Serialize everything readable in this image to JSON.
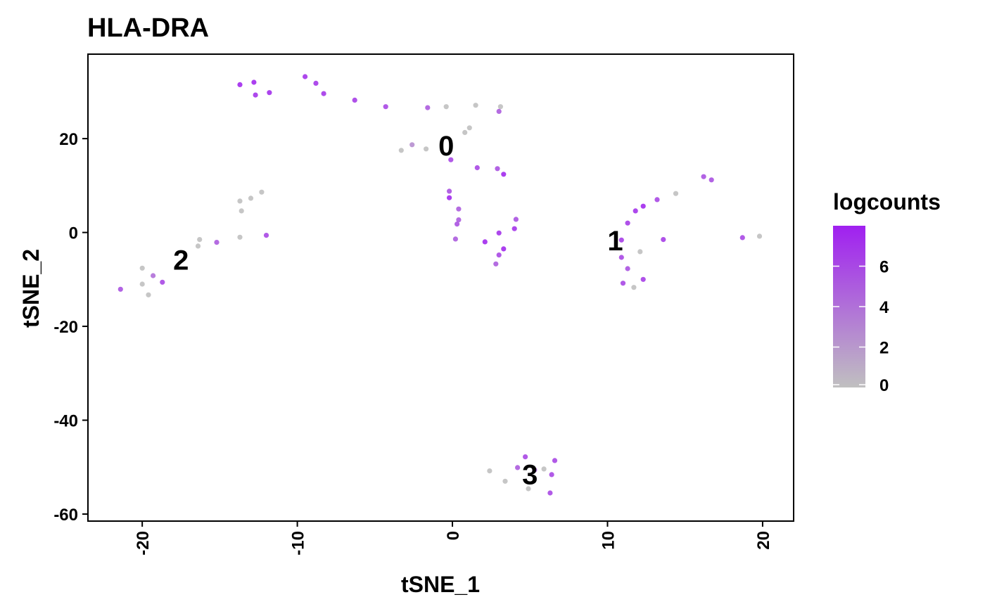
{
  "chart_data": {
    "type": "scatter",
    "title": "HLA-DRA",
    "xlabel": "tSNE_1",
    "ylabel": "tSNE_2",
    "xlim": [
      -23.5,
      22
    ],
    "ylim": [
      -61.5,
      38
    ],
    "x_ticks": [
      -20,
      -10,
      0,
      10,
      20
    ],
    "x_tick_labels": [
      "-20",
      "-10",
      "0",
      "10",
      "20"
    ],
    "y_ticks": [
      -60,
      -40,
      -20,
      0,
      20
    ],
    "y_tick_labels": [
      "-60",
      "-40",
      "-20",
      "0",
      "20"
    ],
    "grid": false,
    "color_scale": {
      "name": "logcounts",
      "low_color": "#c0c0c0",
      "high_color": "#a020f0",
      "min": 0,
      "max": 8,
      "ticks": [
        0,
        2,
        4,
        6
      ],
      "tick_labels": [
        "0",
        "2",
        "4",
        "6"
      ],
      "legend_position": "right"
    },
    "points": [
      {
        "x": -13.7,
        "y": 31.5,
        "v": 7.5
      },
      {
        "x": -12.8,
        "y": 32.0,
        "v": 7.5
      },
      {
        "x": -12.7,
        "y": 29.3,
        "v": 7.0
      },
      {
        "x": -11.8,
        "y": 29.8,
        "v": 7.2
      },
      {
        "x": -9.5,
        "y": 33.2,
        "v": 7.0
      },
      {
        "x": -8.8,
        "y": 31.8,
        "v": 6.8
      },
      {
        "x": -8.3,
        "y": 29.6,
        "v": 6.8
      },
      {
        "x": -6.3,
        "y": 28.2,
        "v": 6.5
      },
      {
        "x": -4.3,
        "y": 26.8,
        "v": 6.0
      },
      {
        "x": -1.6,
        "y": 26.6,
        "v": 5.0
      },
      {
        "x": -0.4,
        "y": 26.8,
        "v": 0.0
      },
      {
        "x": 1.5,
        "y": 27.1,
        "v": 0.0
      },
      {
        "x": 3.1,
        "y": 26.8,
        "v": 0.0
      },
      {
        "x": 3.0,
        "y": 25.8,
        "v": 5.0
      },
      {
        "x": -3.3,
        "y": 17.5,
        "v": 0.0
      },
      {
        "x": -2.6,
        "y": 18.7,
        "v": 2.5
      },
      {
        "x": -1.7,
        "y": 17.8,
        "v": 0.0
      },
      {
        "x": 0.8,
        "y": 21.3,
        "v": 0.0
      },
      {
        "x": 1.1,
        "y": 22.3,
        "v": 0.0
      },
      {
        "x": -0.1,
        "y": 15.5,
        "v": 6.0
      },
      {
        "x": 1.6,
        "y": 13.8,
        "v": 6.0
      },
      {
        "x": 2.9,
        "y": 13.6,
        "v": 5.5
      },
      {
        "x": 3.3,
        "y": 12.4,
        "v": 7.5
      },
      {
        "x": -0.2,
        "y": 8.8,
        "v": 5.5
      },
      {
        "x": -0.2,
        "y": 7.4,
        "v": 7.5
      },
      {
        "x": 0.4,
        "y": 5.0,
        "v": 5.0
      },
      {
        "x": 0.4,
        "y": 2.7,
        "v": 5.0
      },
      {
        "x": 0.3,
        "y": 1.8,
        "v": 5.5
      },
      {
        "x": 0.2,
        "y": -1.4,
        "v": 5.0
      },
      {
        "x": 2.1,
        "y": -2.0,
        "v": 7.5
      },
      {
        "x": 3.0,
        "y": -0.1,
        "v": 7.0
      },
      {
        "x": 3.3,
        "y": -3.5,
        "v": 7.5
      },
      {
        "x": 4.0,
        "y": 0.8,
        "v": 7.0
      },
      {
        "x": 4.1,
        "y": 2.8,
        "v": 5.5
      },
      {
        "x": 3.0,
        "y": -4.8,
        "v": 6.0
      },
      {
        "x": 2.8,
        "y": -6.7,
        "v": 5.0
      },
      {
        "x": 16.2,
        "y": 11.9,
        "v": 5.5
      },
      {
        "x": 16.7,
        "y": 11.2,
        "v": 5.5
      },
      {
        "x": 14.4,
        "y": 8.3,
        "v": 0.0
      },
      {
        "x": 13.2,
        "y": 7.0,
        "v": 6.0
      },
      {
        "x": 12.3,
        "y": 5.6,
        "v": 7.5
      },
      {
        "x": 11.8,
        "y": 4.6,
        "v": 7.0
      },
      {
        "x": 11.3,
        "y": 2.0,
        "v": 6.5
      },
      {
        "x": 13.6,
        "y": -1.5,
        "v": 6.5
      },
      {
        "x": 10.9,
        "y": -1.6,
        "v": 6.5
      },
      {
        "x": 12.1,
        "y": -4.1,
        "v": 0.0
      },
      {
        "x": 10.9,
        "y": -5.3,
        "v": 6.0
      },
      {
        "x": 11.3,
        "y": -7.7,
        "v": 5.5
      },
      {
        "x": 11.0,
        "y": -10.8,
        "v": 6.0
      },
      {
        "x": 11.7,
        "y": -11.7,
        "v": 0.0
      },
      {
        "x": 12.3,
        "y": -10.0,
        "v": 6.5
      },
      {
        "x": 18.7,
        "y": -1.1,
        "v": 6.0
      },
      {
        "x": 19.8,
        "y": -0.8,
        "v": 0.0
      },
      {
        "x": -13.7,
        "y": 6.7,
        "v": 0.0
      },
      {
        "x": -12.3,
        "y": 8.6,
        "v": 0.0
      },
      {
        "x": -13.0,
        "y": 7.3,
        "v": 0.0
      },
      {
        "x": -13.6,
        "y": 4.6,
        "v": 0.0
      },
      {
        "x": -13.7,
        "y": -1.0,
        "v": 0.0
      },
      {
        "x": -12.0,
        "y": -0.6,
        "v": 6.0
      },
      {
        "x": -16.3,
        "y": -1.5,
        "v": 0.0
      },
      {
        "x": -16.4,
        "y": -2.9,
        "v": 0.0
      },
      {
        "x": -15.2,
        "y": -2.1,
        "v": 5.0
      },
      {
        "x": -20.0,
        "y": -7.6,
        "v": 0.0
      },
      {
        "x": -19.3,
        "y": -9.2,
        "v": 4.0
      },
      {
        "x": -18.7,
        "y": -10.6,
        "v": 6.0
      },
      {
        "x": -20.0,
        "y": -11.0,
        "v": 0.0
      },
      {
        "x": -19.6,
        "y": -13.3,
        "v": 0.0
      },
      {
        "x": -21.4,
        "y": -12.1,
        "v": 5.5
      },
      {
        "x": 4.7,
        "y": -47.8,
        "v": 6.0
      },
      {
        "x": 6.6,
        "y": -48.6,
        "v": 6.0
      },
      {
        "x": 4.2,
        "y": -50.1,
        "v": 5.0
      },
      {
        "x": 5.3,
        "y": -50.6,
        "v": 4.5
      },
      {
        "x": 5.9,
        "y": -50.4,
        "v": 0.0
      },
      {
        "x": 2.4,
        "y": -50.8,
        "v": 0.0
      },
      {
        "x": 6.4,
        "y": -51.6,
        "v": 6.0
      },
      {
        "x": 3.4,
        "y": -53.0,
        "v": 0.0
      },
      {
        "x": 4.9,
        "y": -54.6,
        "v": 0.0
      },
      {
        "x": 6.3,
        "y": -55.5,
        "v": 6.0
      }
    ],
    "cluster_labels": [
      {
        "label": "0",
        "x": -0.4,
        "y": 18.5
      },
      {
        "label": "1",
        "x": 10.5,
        "y": -1.7
      },
      {
        "label": "2",
        "x": -17.5,
        "y": -5.8
      },
      {
        "label": "3",
        "x": 5.0,
        "y": -51.5
      }
    ]
  }
}
